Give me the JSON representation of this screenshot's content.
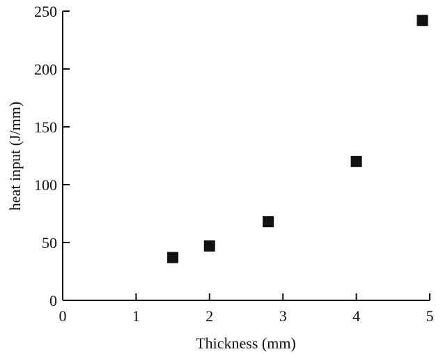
{
  "chart_data": {
    "type": "scatter",
    "title": "",
    "xlabel": "Thickness (mm)",
    "ylabel": "heat input (J/mm)",
    "xlim": [
      0,
      5
    ],
    "ylim": [
      0,
      250
    ],
    "x_ticks": [
      "0",
      "1",
      "2",
      "3",
      "4",
      "5"
    ],
    "y_ticks": [
      "0",
      "50",
      "100",
      "150",
      "200",
      "250"
    ],
    "grid": false,
    "marker": "square",
    "marker_color": "#111111",
    "series": [
      {
        "x": [
          1.5,
          2.0,
          2.8,
          4.0,
          4.9
        ],
        "y": [
          37,
          47,
          68,
          120,
          242
        ]
      }
    ]
  }
}
